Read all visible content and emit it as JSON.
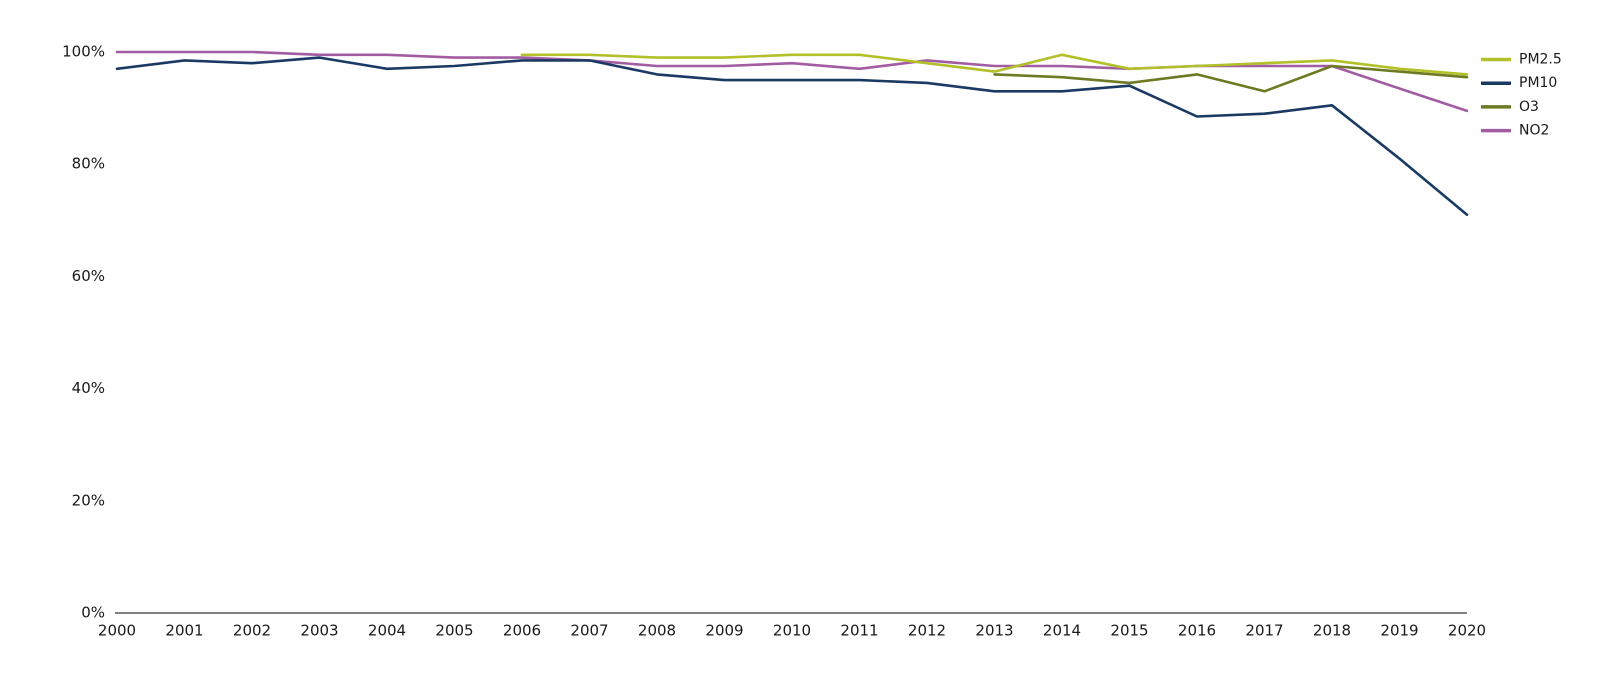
{
  "chart_data": {
    "type": "line",
    "title": "",
    "xlabel": "",
    "ylabel": "",
    "x": [
      2000,
      2001,
      2002,
      2003,
      2004,
      2005,
      2006,
      2007,
      2008,
      2009,
      2010,
      2011,
      2012,
      2013,
      2014,
      2015,
      2016,
      2017,
      2018,
      2019,
      2020
    ],
    "y_ticks": [
      {
        "v": 0,
        "label": "0%"
      },
      {
        "v": 20,
        "label": "20%"
      },
      {
        "v": 40,
        "label": "40%"
      },
      {
        "v": 60,
        "label": "60%"
      },
      {
        "v": 80,
        "label": "80%"
      },
      {
        "v": 100,
        "label": "100%"
      }
    ],
    "ylim": [
      0,
      100
    ],
    "grid": false,
    "legend_position": "right",
    "background_color": "#ffffff",
    "axis_color": "#808080",
    "text_color": "#1a1a1a",
    "series": [
      {
        "name": "PM2.5",
        "color": "#b2c02a",
        "values": [
          null,
          null,
          null,
          null,
          null,
          null,
          99.5,
          99.5,
          99,
          99,
          99.5,
          99.5,
          98,
          96.5,
          99.5,
          97,
          97.5,
          98,
          98.5,
          97,
          96
        ]
      },
      {
        "name": "PM10",
        "color": "#1b3a63",
        "values": [
          97,
          98.5,
          98,
          99,
          97,
          97.5,
          98.5,
          98.5,
          96,
          95,
          95,
          95,
          94.5,
          93,
          93,
          94,
          88.5,
          89,
          90.5,
          81,
          71
        ]
      },
      {
        "name": "O3",
        "color": "#6e7a23",
        "values": [
          null,
          null,
          null,
          null,
          null,
          null,
          null,
          null,
          null,
          null,
          null,
          null,
          null,
          96,
          95.5,
          94.5,
          96,
          93,
          97.5,
          96.5,
          95.5
        ]
      },
      {
        "name": "NO2",
        "color": "#a25ca2",
        "values": [
          100,
          100,
          100,
          99.5,
          99.5,
          99,
          99,
          98.5,
          97.5,
          97.5,
          98,
          97,
          98.5,
          97.5,
          97.5,
          97,
          97.5,
          97.5,
          97.5,
          93.5,
          89.5
        ]
      }
    ]
  }
}
